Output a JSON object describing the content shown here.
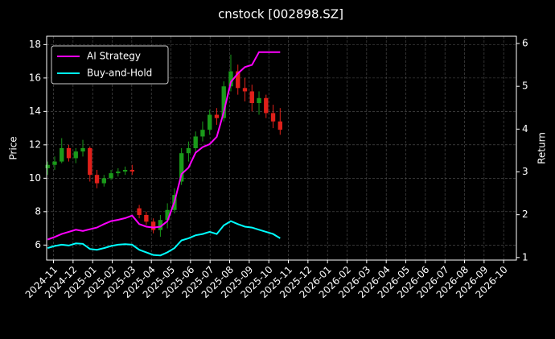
{
  "chart_data": {
    "type": "candlestick",
    "title": "cnstock [002898.SZ]",
    "ylabel": "Price",
    "y2label": "Return",
    "x": [
      -0.3,
      0.06,
      0.42,
      0.78,
      1.14,
      1.5,
      1.86,
      2.22,
      2.58,
      2.94,
      3.3,
      3.66,
      4.02,
      4.38,
      4.74,
      5.1,
      5.46,
      5.82,
      6.18,
      6.54,
      6.9,
      7.26,
      7.62,
      7.98,
      8.34,
      8.7,
      9.06,
      9.42,
      9.78,
      10.14,
      10.5,
      10.86,
      11.22,
      11.58
    ],
    "open": [
      10.6,
      10.8,
      11.0,
      11.8,
      11.2,
      11.6,
      11.8,
      10.2,
      9.7,
      10.0,
      10.3,
      10.4,
      10.5,
      8.2,
      7.8,
      7.4,
      6.9,
      7.5,
      8.1,
      9.8,
      11.5,
      11.8,
      12.5,
      12.9,
      13.8,
      13.6,
      15.5,
      16.4,
      15.4,
      15.2,
      14.5,
      14.8,
      13.9,
      13.4
    ],
    "high": [
      11.0,
      11.3,
      12.4,
      12.0,
      11.8,
      12.3,
      11.9,
      10.5,
      10.2,
      10.5,
      10.6,
      10.7,
      10.8,
      8.4,
      8.0,
      7.6,
      7.8,
      8.5,
      9.4,
      11.8,
      12.2,
      12.8,
      13.4,
      14.1,
      14.2,
      15.8,
      17.4,
      16.8,
      16.0,
      15.6,
      15.2,
      15.0,
      14.4,
      14.2
    ],
    "low": [
      10.2,
      10.5,
      10.9,
      11.0,
      10.9,
      11.3,
      9.8,
      9.4,
      9.5,
      9.9,
      10.1,
      10.2,
      10.2,
      7.6,
      7.2,
      6.7,
      6.5,
      7.0,
      7.9,
      9.6,
      11.0,
      11.5,
      12.2,
      12.6,
      13.2,
      13.4,
      15.2,
      15.0,
      14.6,
      14.0,
      13.8,
      13.6,
      13.0,
      12.6
    ],
    "close": [
      10.8,
      11.0,
      11.8,
      11.2,
      11.6,
      11.8,
      10.2,
      9.7,
      10.0,
      10.3,
      10.4,
      10.5,
      10.4,
      7.8,
      7.4,
      6.9,
      7.5,
      8.1,
      9.0,
      11.5,
      11.8,
      12.5,
      12.9,
      13.8,
      13.6,
      15.5,
      16.4,
      15.4,
      15.2,
      14.5,
      14.8,
      13.9,
      13.4,
      12.9
    ],
    "up_color": "#1a9a1a",
    "down_color": "#e0201a",
    "series": [
      {
        "name": "AI Strategy",
        "color": "#ff00ff",
        "axis": "y2",
        "values": [
          1.42,
          1.48,
          1.55,
          1.6,
          1.65,
          1.62,
          1.66,
          1.7,
          1.78,
          1.85,
          1.88,
          1.92,
          1.98,
          1.78,
          1.72,
          1.7,
          1.72,
          1.85,
          2.3,
          2.95,
          3.1,
          3.45,
          3.58,
          3.65,
          3.82,
          4.4,
          5.1,
          5.3,
          5.45,
          5.5,
          5.8,
          5.8,
          5.8,
          5.8
        ]
      },
      {
        "name": "Buy-and-Hold",
        "color": "#00ffff",
        "axis": "y2",
        "values": [
          1.22,
          1.27,
          1.3,
          1.28,
          1.33,
          1.32,
          1.2,
          1.18,
          1.22,
          1.27,
          1.3,
          1.31,
          1.3,
          1.18,
          1.12,
          1.06,
          1.05,
          1.12,
          1.22,
          1.4,
          1.45,
          1.52,
          1.55,
          1.6,
          1.55,
          1.75,
          1.85,
          1.78,
          1.72,
          1.7,
          1.65,
          1.6,
          1.55,
          1.45
        ]
      }
    ],
    "xlim": [
      -0.35,
      23.65
    ],
    "xticks": [
      {
        "value": 0,
        "label": "2024-11"
      },
      {
        "value": 1,
        "label": "2024-12"
      },
      {
        "value": 2,
        "label": "2025-01"
      },
      {
        "value": 3,
        "label": "2025-02"
      },
      {
        "value": 4,
        "label": "2025-03"
      },
      {
        "value": 5,
        "label": "2025-04"
      },
      {
        "value": 6,
        "label": "2025-05"
      },
      {
        "value": 7,
        "label": "2025-06"
      },
      {
        "value": 8,
        "label": "2025-07"
      },
      {
        "value": 9,
        "label": "2025-08"
      },
      {
        "value": 10,
        "label": "2025-09"
      },
      {
        "value": 11,
        "label": "2025-10"
      },
      {
        "value": 12,
        "label": "2025-11"
      },
      {
        "value": 13,
        "label": "2025-12"
      },
      {
        "value": 14,
        "label": "2026-01"
      },
      {
        "value": 15,
        "label": "2026-02"
      },
      {
        "value": 16,
        "label": "2026-03"
      },
      {
        "value": 17,
        "label": "2026-04"
      },
      {
        "value": 18,
        "label": "2026-05"
      },
      {
        "value": 19,
        "label": "2026-06"
      },
      {
        "value": 20,
        "label": "2026-07"
      },
      {
        "value": 21,
        "label": "2026-08"
      },
      {
        "value": 22,
        "label": "2026-09"
      },
      {
        "value": 23,
        "label": "2026-10"
      }
    ],
    "ylim": [
      5.1,
      18.5
    ],
    "yticks": [
      6,
      8,
      10,
      12,
      14,
      16,
      18
    ],
    "y2lim": [
      0.94,
      6.17
    ],
    "y2ticks": [
      1,
      2,
      3,
      4,
      5,
      6
    ],
    "grid": true,
    "legend": "upper left"
  }
}
